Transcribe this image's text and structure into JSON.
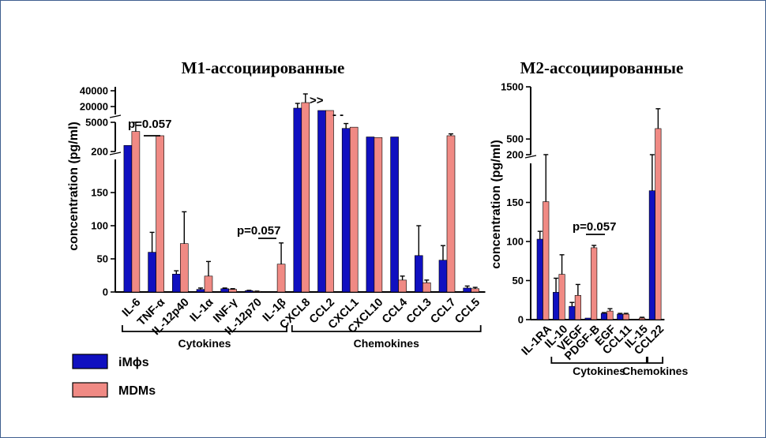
{
  "colors": {
    "series_a": "#1010c0",
    "series_b": "#f08a84",
    "axis": "#000000",
    "frame": "#3f5f8f"
  },
  "legend": {
    "placement": "bottom-left"
  },
  "chart_data": [
    {
      "type": "bar",
      "title": "M1-ассоциированные",
      "ylabel": "concentration (pg/ml)",
      "y_axis_broken": true,
      "y_segments": [
        {
          "range": [
            0,
            200
          ],
          "ticks": [
            "0",
            "50",
            "100",
            "150",
            "200"
          ]
        },
        {
          "range": [
            200,
            5000
          ],
          "ticks": [
            "5000"
          ]
        },
        {
          "range": [
            10000,
            45000
          ],
          "ticks": [
            "20000",
            "40000"
          ]
        }
      ],
      "categories": [
        "IL-6",
        "TNF-α",
        "IL-12p40",
        "IL-1α",
        "INF-γ",
        "IL-12p70",
        "IL-1β",
        "CXCL8",
        "CCL2",
        "CXCL1",
        "CXCL10",
        "CCL4",
        "CCL3",
        "CCL7",
        "CCL5"
      ],
      "series": [
        {
          "name": "iMϕs",
          "values": [
            1200,
            60,
            27,
            4,
            5,
            2,
            0.5,
            18000,
            15000,
            4000,
            2600,
            2600,
            55,
            48,
            6
          ],
          "errors": [
            0,
            30,
            5,
            2,
            1,
            0.5,
            0,
            6000,
            0,
            800,
            0,
            0,
            45,
            22,
            3
          ]
        },
        {
          "name": "MDMs",
          "values": [
            3500,
            2800,
            73,
            24,
            4,
            1,
            42,
            25000,
            15000,
            4200,
            2500,
            18,
            14,
            2800,
            5
          ],
          "errors": [
            1500,
            0,
            48,
            22,
            1,
            0.3,
            32,
            11000,
            0,
            0,
            0,
            6,
            4,
            300,
            2
          ]
        }
      ],
      "annotations": [
        "p=0.057",
        "p=0.057",
        ">>",
        "- -"
      ],
      "groups": [
        {
          "label": "Cytokines",
          "categories": [
            "IL-6",
            "IL-1β"
          ]
        },
        {
          "label": "Chemokines",
          "categories": [
            "CXCL8",
            "CCL5"
          ]
        }
      ]
    },
    {
      "type": "bar",
      "title": "M2-ассоциированные",
      "ylabel": "concentration  (pg/ml)",
      "y_axis_broken": true,
      "y_segments": [
        {
          "range": [
            0,
            200
          ],
          "ticks": [
            "0",
            "50",
            "100",
            "150",
            "200"
          ]
        },
        {
          "range": [
            200,
            1500
          ],
          "ticks": [
            "500",
            "1500"
          ]
        }
      ],
      "categories": [
        "IL-1RA",
        "IL-10",
        "VEGF",
        "PDGF-B",
        "EGF",
        "CCL11",
        "IL-15",
        "CCL22"
      ],
      "series": [
        {
          "name": "iMϕs",
          "values": [
            103,
            35,
            17,
            2,
            8,
            7,
            0,
            165
          ],
          "errors": [
            10,
            18,
            5,
            0,
            1,
            1,
            0,
            35
          ]
        },
        {
          "name": "MDMs",
          "values": [
            151,
            58,
            31,
            92,
            11,
            7,
            2,
            700
          ],
          "errors": [
            50,
            25,
            14,
            3,
            3,
            1,
            1,
            380
          ]
        }
      ],
      "annotations": [
        "p=0.057"
      ],
      "groups": [
        {
          "label": "Cytokines",
          "categories": [
            "IL-10",
            "IL-15"
          ]
        },
        {
          "label": "Chemokines",
          "categories": [
            "CCL22",
            "CCL22"
          ]
        }
      ]
    }
  ]
}
